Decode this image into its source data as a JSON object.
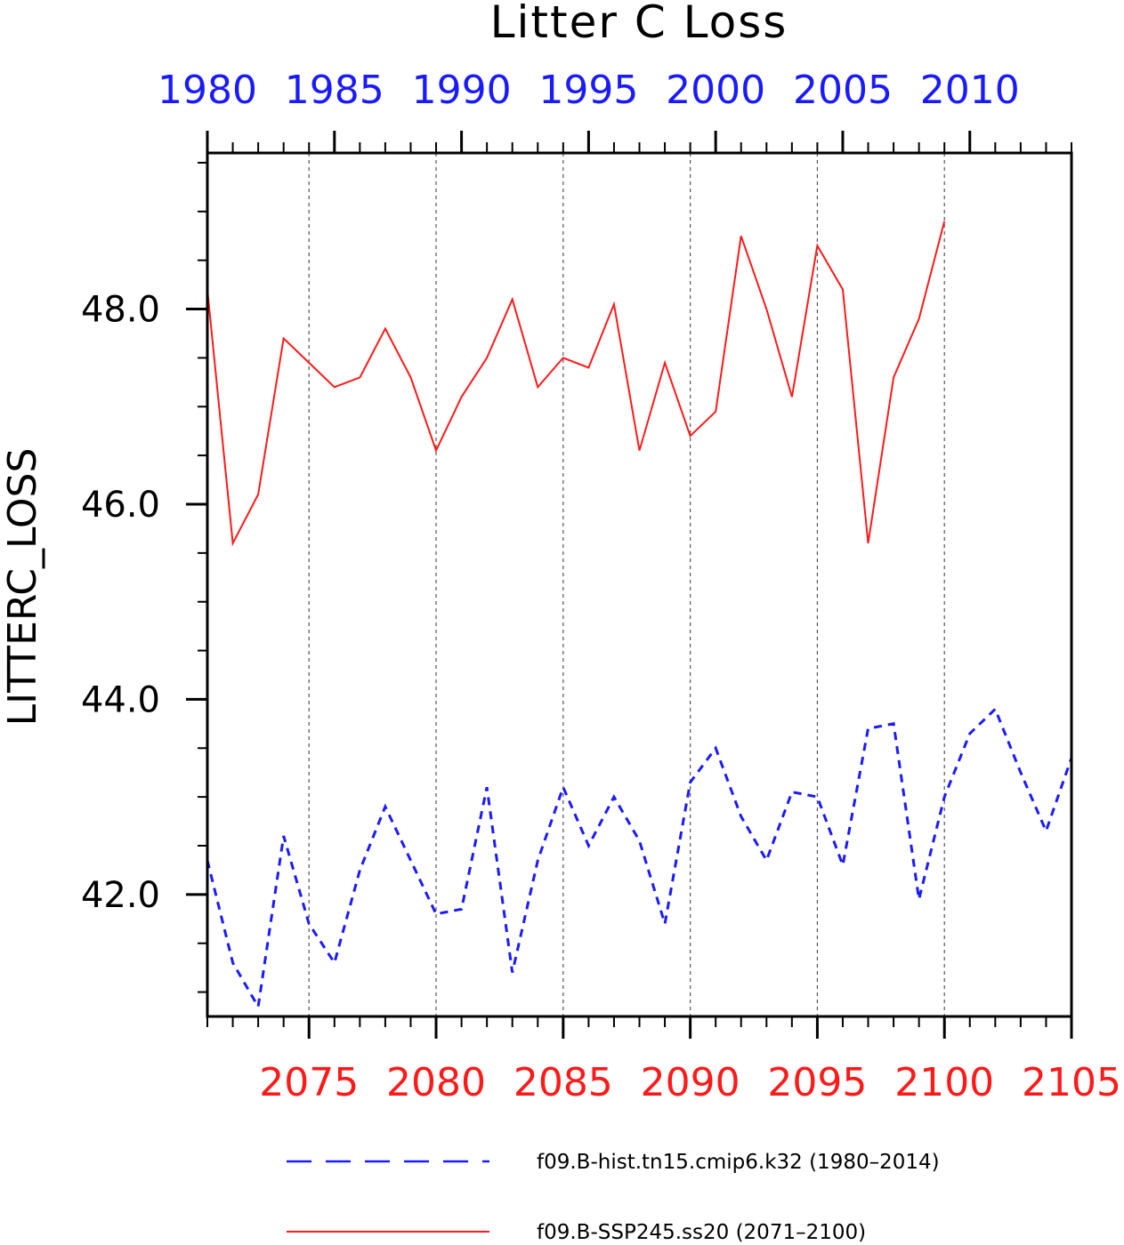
{
  "chart_data": {
    "type": "line",
    "title": "Litter C Loss",
    "ylabel": "LITTERC_LOSS",
    "ylim": [
      40.75,
      49.6
    ],
    "yticks": [
      42.0,
      44.0,
      46.0,
      48.0
    ],
    "yticklabels": [
      "42.0",
      "44.0",
      "46.0",
      "48.0"
    ],
    "grid": "vertical-dashed",
    "top_axis": {
      "color": "#1a1aff",
      "range": [
        1980,
        2014
      ],
      "ticks": [
        1980,
        1985,
        1990,
        1995,
        2000,
        2005,
        2010
      ],
      "ticklabels": [
        "1980",
        "1985",
        "1990",
        "1995",
        "2000",
        "2005",
        "2010"
      ]
    },
    "bottom_axis": {
      "color": "#ff1a1a",
      "range": [
        2071,
        2105
      ],
      "ticks": [
        2075,
        2080,
        2085,
        2090,
        2095,
        2100,
        2105
      ],
      "ticklabels": [
        "2075",
        "2080",
        "2085",
        "2090",
        "2095",
        "2100",
        "2105"
      ]
    },
    "series": [
      {
        "name": "f09.B-hist.tn15.cmip6.k32 (1980–2014)",
        "color": "#1a1aff",
        "style": "dashed",
        "x_axis": "top",
        "x": [
          1980,
          1981,
          1982,
          1983,
          1984,
          1985,
          1986,
          1987,
          1988,
          1989,
          1990,
          1991,
          1992,
          1993,
          1994,
          1995,
          1996,
          1997,
          1998,
          1999,
          2000,
          2001,
          2002,
          2003,
          2004,
          2005,
          2006,
          2007,
          2008,
          2009,
          2010,
          2011,
          2012,
          2013,
          2014
        ],
        "values": [
          42.35,
          41.3,
          40.85,
          42.6,
          41.7,
          41.3,
          42.25,
          42.9,
          42.35,
          41.8,
          41.85,
          43.1,
          41.2,
          42.35,
          43.1,
          42.5,
          43.0,
          42.55,
          41.7,
          43.15,
          43.5,
          42.8,
          42.35,
          43.05,
          43.0,
          42.3,
          43.7,
          43.75,
          41.95,
          43.0,
          43.65,
          43.9,
          43.25,
          42.65,
          43.4
        ]
      },
      {
        "name": "f09.B-SSP245.ss20 (2071–2100)",
        "color": "#ff1a1a",
        "style": "solid",
        "x_axis": "bottom",
        "x": [
          2071,
          2072,
          2073,
          2074,
          2075,
          2076,
          2077,
          2078,
          2079,
          2080,
          2081,
          2082,
          2083,
          2084,
          2085,
          2086,
          2087,
          2088,
          2089,
          2090,
          2091,
          2092,
          2093,
          2094,
          2095,
          2096,
          2097,
          2098,
          2099,
          2100
        ],
        "values": [
          48.2,
          45.6,
          46.1,
          47.7,
          47.45,
          47.2,
          47.3,
          47.8,
          47.3,
          46.55,
          47.1,
          47.5,
          48.1,
          47.2,
          47.5,
          47.4,
          48.05,
          46.55,
          47.45,
          46.7,
          46.95,
          48.75,
          48.0,
          47.1,
          48.65,
          48.2,
          45.6,
          47.3,
          47.9,
          48.9
        ]
      }
    ],
    "legend": {
      "placement": "bottom",
      "entries": [
        {
          "label": "f09.B-hist.tn15.cmip6.k32 (1980–2014)",
          "color": "#1a1aff",
          "style": "dashed"
        },
        {
          "label": "f09.B-SSP245.ss20 (2071–2100)",
          "color": "#ff1a1a",
          "style": "solid"
        }
      ]
    }
  }
}
